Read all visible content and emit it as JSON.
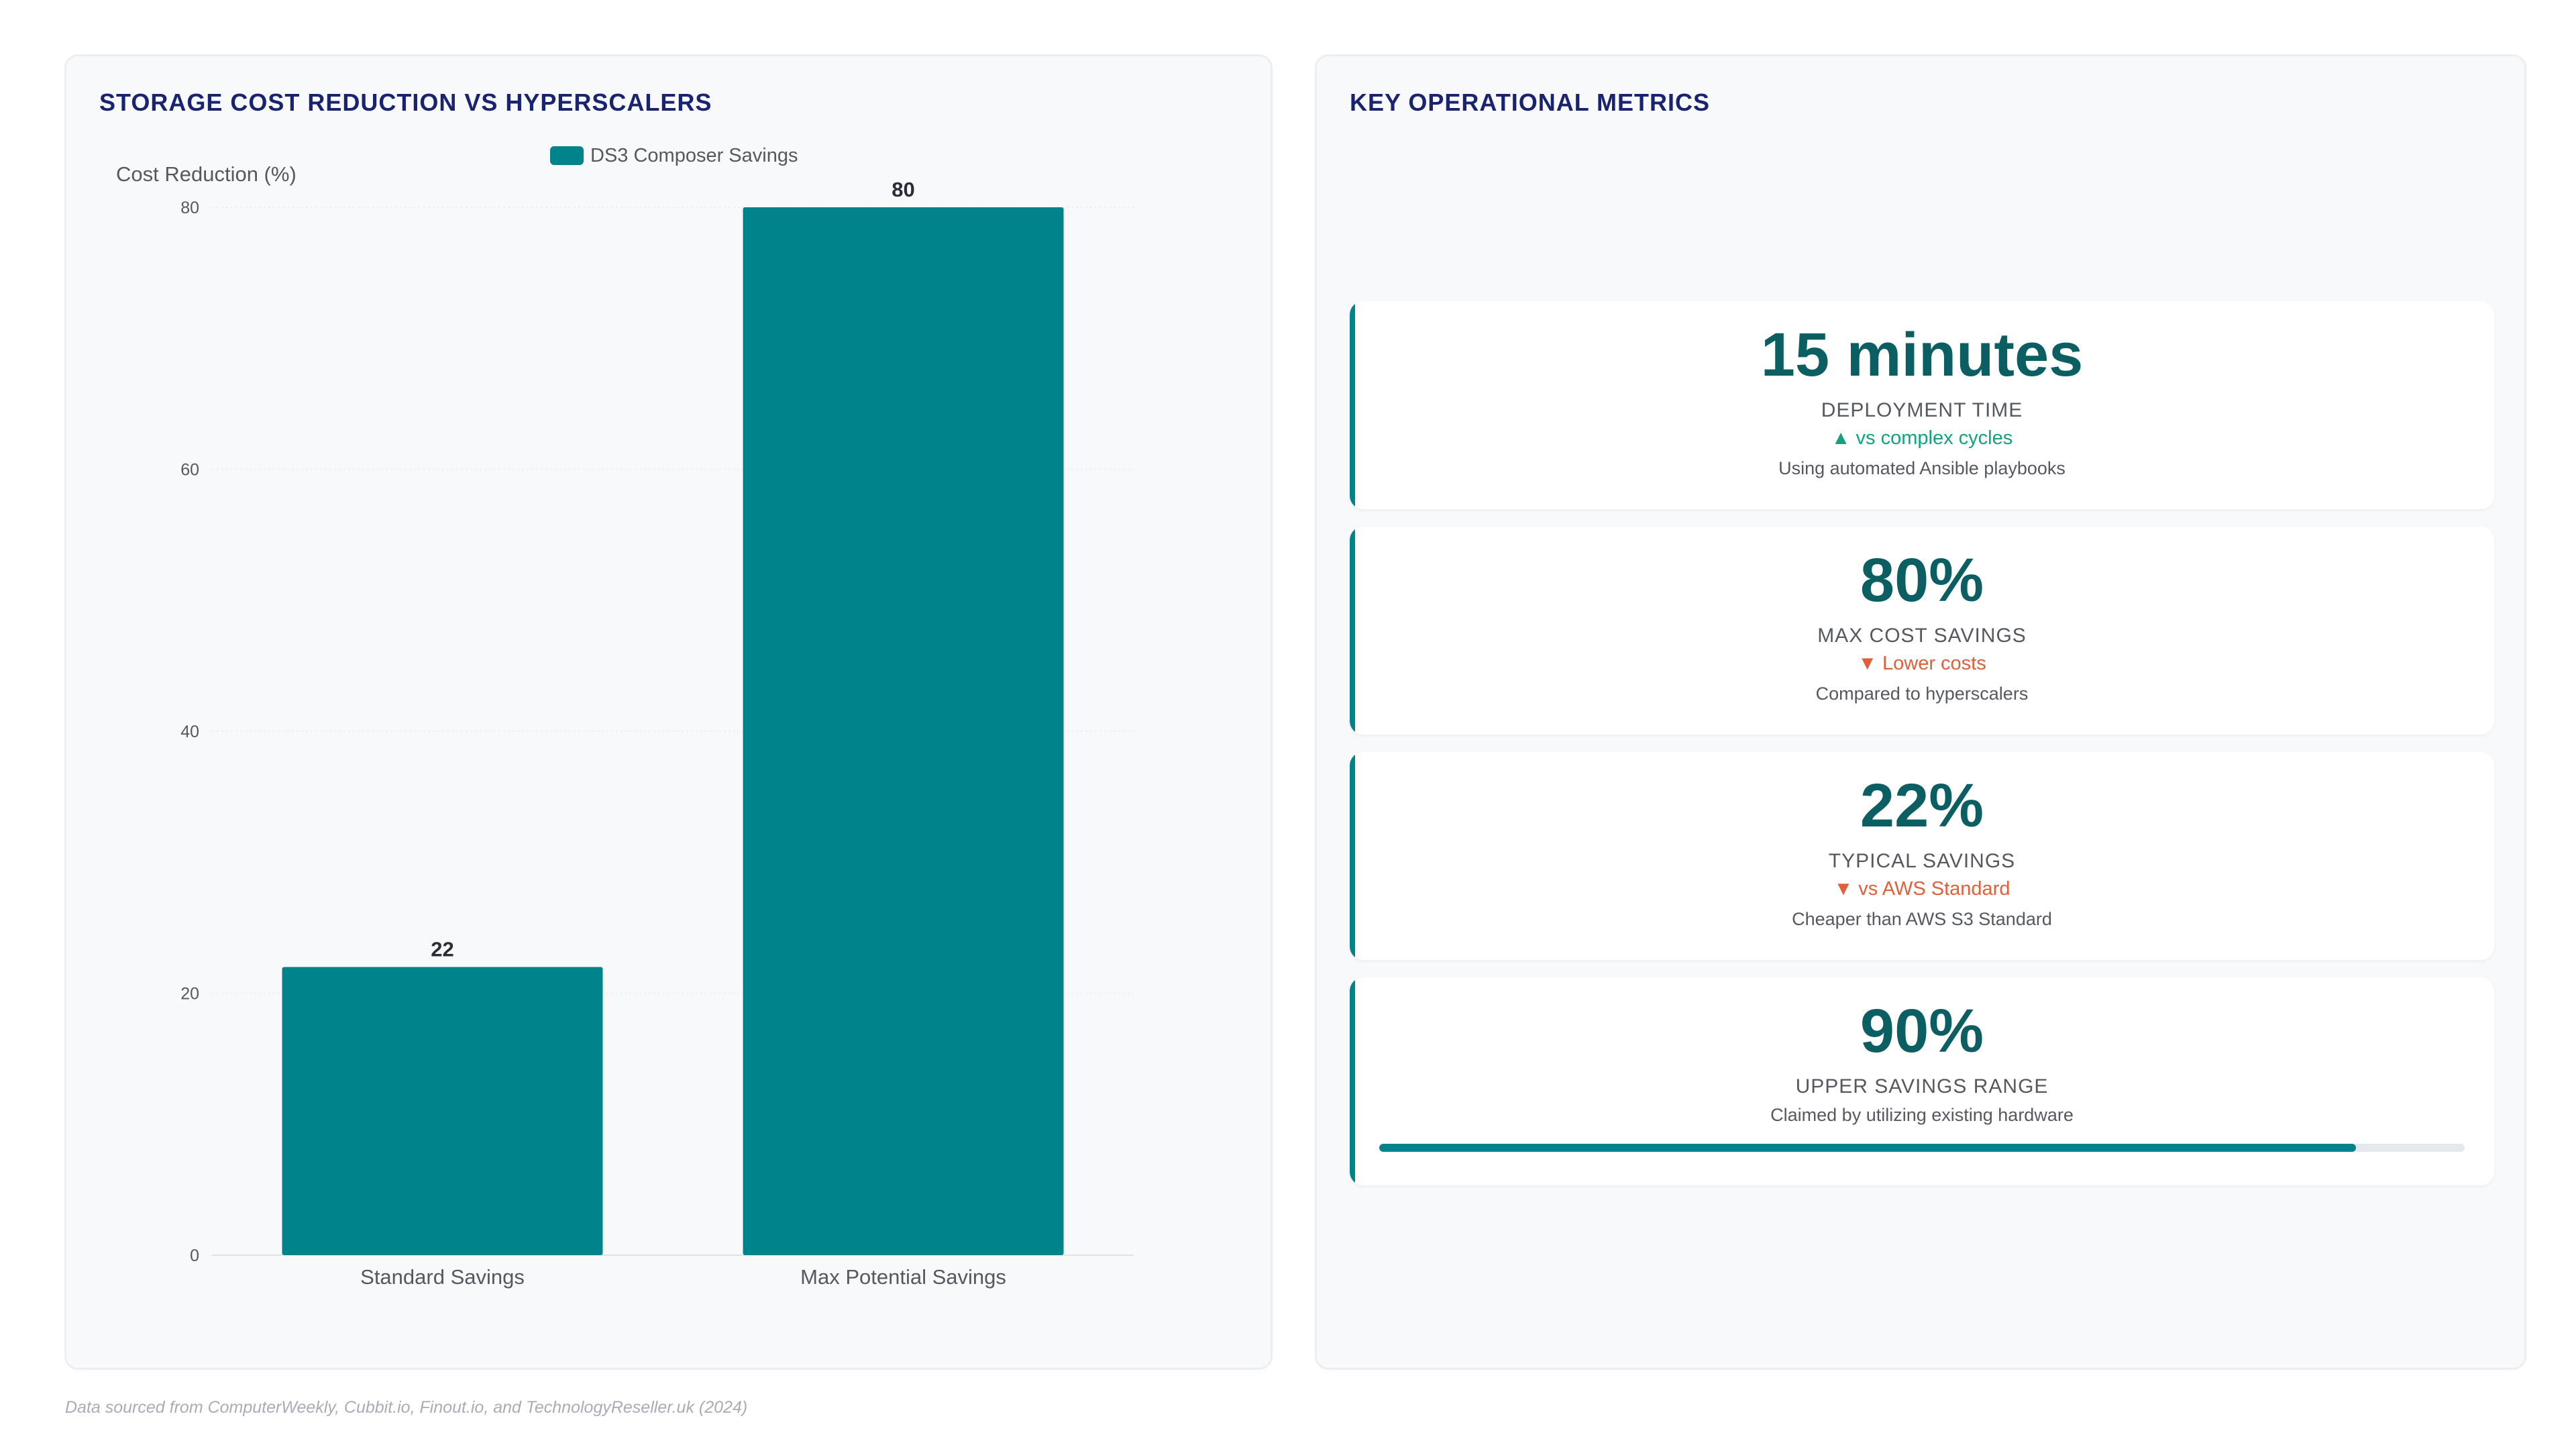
{
  "colors": {
    "accent": "#00838a",
    "value_text": "#0b5e61",
    "title": "#1a2370",
    "trend_up": "#12a37e",
    "trend_down": "#e0603a"
  },
  "left_panel": {
    "title": "STORAGE COST REDUCTION VS HYPERSCALERS"
  },
  "chart_data": {
    "type": "bar",
    "categories": [
      "Standard Savings",
      "Max Potential Savings"
    ],
    "series": [
      {
        "name": "DS3 Composer Savings",
        "values": [
          22,
          80
        ]
      }
    ],
    "ylabel": "Cost Reduction (%)",
    "xlabel": "",
    "ylim": [
      0,
      80
    ],
    "yticks": [
      0,
      20,
      40,
      60,
      80
    ],
    "legend_position": "top-center",
    "data_labels": true,
    "grid": true
  },
  "right_panel": {
    "title": "KEY OPERATIONAL METRICS",
    "cards": [
      {
        "value": "15 minutes",
        "label": "DEPLOYMENT TIME",
        "trend": "▲ vs complex cycles",
        "trend_dir": "up",
        "note": "Using automated Ansible playbooks"
      },
      {
        "value": "80%",
        "label": "MAX COST SAVINGS",
        "trend": "▼ Lower costs",
        "trend_dir": "down",
        "note": "Compared to hyperscalers"
      },
      {
        "value": "22%",
        "label": "TYPICAL SAVINGS",
        "trend": "▼ vs AWS Standard",
        "trend_dir": "down",
        "note": "Cheaper than AWS S3 Standard"
      },
      {
        "value": "90%",
        "label": "UPPER SAVINGS RANGE",
        "note": "Claimed by utilizing existing hardware",
        "progress": 0.9
      }
    ]
  },
  "footnote": "Data sourced from ComputerWeekly, Cubbit.io, Finout.io, and TechnologyReseller.uk (2024)"
}
